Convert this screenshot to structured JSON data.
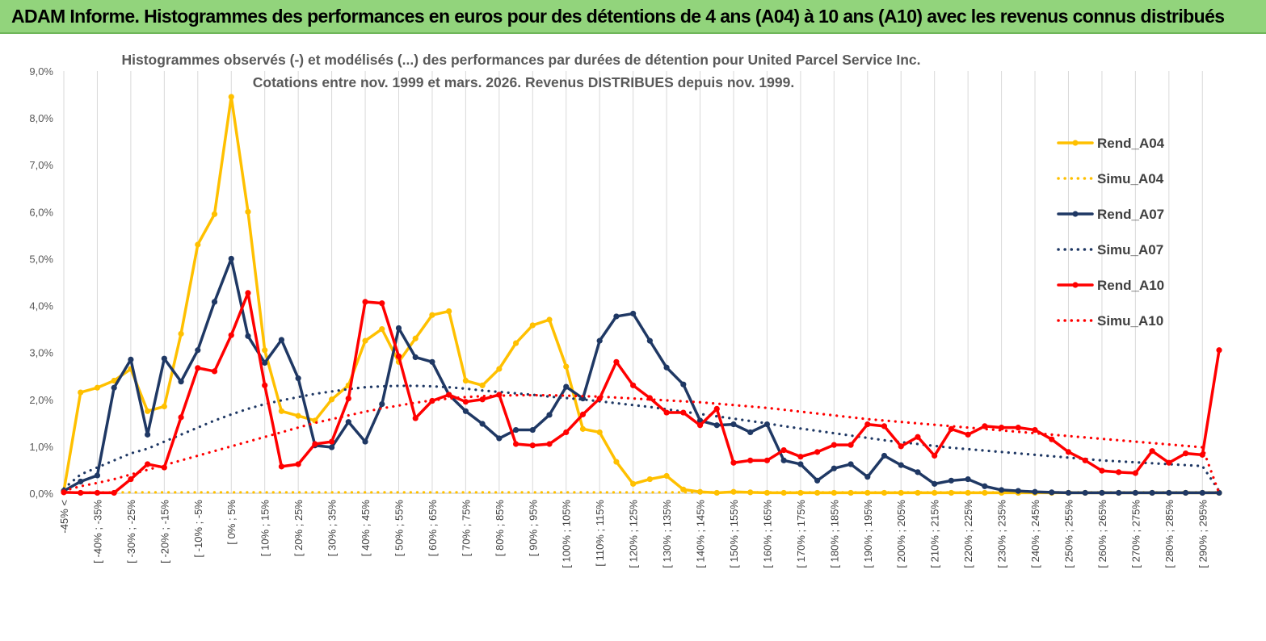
{
  "header": {
    "banner_title": "ADAM Informe. Histogrammes des performances en euros pour des détentions de 4 ans (A04) à 10 ans (A10) avec les revenus connus distribués"
  },
  "chart_data": {
    "type": "line",
    "title": "Histogrammes observés (-) et modélisés (...) des performances par durées de détention pour United Parcel Service Inc.",
    "subtitle": "Cotations entre nov. 1999 et mars. 2026. Revenus DISTRIBUES depuis nov. 1999.",
    "xlabel": "",
    "ylabel": "",
    "ylim": [
      0,
      9
    ],
    "y_ticks": [
      "0,0%",
      "1,0%",
      "2,0%",
      "3,0%",
      "4,0%",
      "5,0%",
      "6,0%",
      "7,0%",
      "8,0%",
      "9,0%"
    ],
    "grid": "vertical",
    "legend_position": "right",
    "x_tick_labels": [
      "-45% <",
      "[ -40% ; -35%",
      "[ -30% ; -25%",
      "[ -20% ; -15%",
      "[ -10% ; -5%",
      "[ 0% ; 5%",
      "[ 10% ; 15%",
      "[ 20% ; 25%",
      "[ 30% ; 35%",
      "[ 40% ; 45%",
      "[ 50% ; 55%",
      "[ 60% ; 65%",
      "[ 70% ; 75%",
      "[ 80% ; 85%",
      "[ 90% ; 95%",
      "[ 100% ; 105%",
      "[ 110% ; 115%",
      "[ 120% ; 125%",
      "[ 130% ; 135%",
      "[ 140% ; 145%",
      "[ 150% ; 155%",
      "[ 160% ; 165%",
      "[ 170% ; 175%",
      "[ 180% ; 185%",
      "[ 190% ; 195%",
      "[ 200% ; 205%",
      "[ 210% ; 215%",
      "[ 220% ; 225%",
      "[ 230% ; 235%",
      "[ 240% ; 245%",
      "[ 250% ; 255%",
      "[ 260% ; 265%",
      "[ 270% ; 275%",
      "[ 280% ; 285%",
      "[ 290% ; 295%"
    ],
    "x_tick_indices": [
      0,
      2,
      4,
      6,
      8,
      10,
      12,
      14,
      16,
      18,
      20,
      22,
      24,
      26,
      28,
      30,
      32,
      34,
      36,
      38,
      40,
      42,
      44,
      46,
      48,
      50,
      52,
      54,
      56,
      58,
      60,
      62,
      64,
      66,
      68
    ],
    "n_points": 70,
    "series": [
      {
        "name": "Rend_A04",
        "style": "solid",
        "color": "#ffc000",
        "values": [
          0.05,
          2.15,
          2.25,
          2.4,
          2.65,
          1.75,
          1.85,
          3.4,
          5.3,
          5.95,
          8.45,
          6.0,
          3.05,
          1.75,
          1.65,
          1.55,
          2.0,
          2.3,
          3.25,
          3.5,
          2.8,
          3.3,
          3.8,
          3.88,
          2.4,
          2.3,
          2.65,
          3.2,
          3.58,
          3.7,
          2.7,
          1.37,
          1.3,
          0.67,
          0.2,
          0.3,
          0.37,
          0.08,
          0.03,
          0.01,
          0.03,
          0.02,
          0.01,
          0.01,
          0.01,
          0.01,
          0.01,
          0.01,
          0.01,
          0.01,
          0.01,
          0.01,
          0.01,
          0.01,
          0.01,
          0.01,
          0.01,
          0.01,
          0.01,
          0.01,
          0.01,
          0.01,
          0.01,
          0.01,
          0.01,
          0.01,
          0.01,
          0.01,
          0.01,
          0.01
        ]
      },
      {
        "name": "Simu_A04",
        "style": "dotted",
        "color": "#ffc000",
        "values": [
          0.02,
          0.02,
          0.02,
          0.02,
          0.02,
          0.02,
          0.02,
          0.02,
          0.02,
          0.02,
          0.02,
          0.02,
          0.02,
          0.02,
          0.02,
          0.02,
          0.02,
          0.02,
          0.02,
          0.02,
          0.02,
          0.02,
          0.02,
          0.02,
          0.02,
          0.02,
          0.02,
          0.02,
          0.02,
          0.02,
          0.02,
          0.02,
          0.02,
          0.02,
          0.02,
          0.02,
          0.02,
          0.02,
          0.02,
          0.02,
          0.02,
          0.02,
          0.02,
          0.02,
          0.02,
          0.02,
          0.02,
          0.02,
          0.02,
          0.02,
          0.02,
          0.02,
          0.02,
          0.02,
          0.02,
          0.02,
          0.02,
          0.02,
          0.02,
          0.02,
          0.02,
          0.02,
          0.02,
          0.02,
          0.02,
          0.02,
          0.02,
          0.02,
          0.02,
          0.02
        ]
      },
      {
        "name": "Rend_A07",
        "style": "solid",
        "color": "#1f3864",
        "values": [
          0.05,
          0.25,
          0.38,
          2.25,
          2.85,
          1.25,
          2.87,
          2.38,
          3.05,
          4.08,
          5.0,
          3.35,
          2.78,
          3.27,
          2.45,
          1.02,
          0.98,
          1.52,
          1.1,
          1.9,
          3.52,
          2.9,
          2.8,
          2.1,
          1.75,
          1.48,
          1.17,
          1.35,
          1.35,
          1.67,
          2.27,
          2.02,
          3.25,
          3.77,
          3.83,
          3.25,
          2.68,
          2.32,
          1.55,
          1.45,
          1.47,
          1.3,
          1.47,
          0.7,
          0.62,
          0.27,
          0.53,
          0.62,
          0.35,
          0.8,
          0.6,
          0.45,
          0.2,
          0.27,
          0.3,
          0.15,
          0.07,
          0.05,
          0.03,
          0.02,
          0.01,
          0.01,
          0.01,
          0.01,
          0.01,
          0.01,
          0.01,
          0.01,
          0.01,
          0.01
        ]
      },
      {
        "name": "Simu_A07",
        "style": "dotted",
        "color": "#1f3864",
        "values": [
          0.1,
          0.4,
          0.55,
          0.7,
          0.85,
          0.95,
          1.1,
          1.25,
          1.4,
          1.55,
          1.68,
          1.8,
          1.9,
          1.98,
          2.05,
          2.12,
          2.17,
          2.22,
          2.26,
          2.28,
          2.29,
          2.29,
          2.28,
          2.26,
          2.23,
          2.19,
          2.16,
          2.13,
          2.1,
          2.06,
          2.03,
          2.0,
          1.96,
          1.92,
          1.88,
          1.84,
          1.79,
          1.74,
          1.69,
          1.64,
          1.59,
          1.54,
          1.49,
          1.43,
          1.38,
          1.33,
          1.28,
          1.23,
          1.18,
          1.13,
          1.09,
          1.05,
          1.01,
          0.97,
          0.94,
          0.91,
          0.88,
          0.85,
          0.82,
          0.79,
          0.76,
          0.73,
          0.7,
          0.68,
          0.66,
          0.64,
          0.62,
          0.6,
          0.58,
          0.05
        ]
      },
      {
        "name": "Rend_A10",
        "style": "solid",
        "color": "#ff0000",
        "values": [
          0.02,
          0.01,
          0.01,
          0.01,
          0.3,
          0.62,
          0.55,
          1.62,
          2.67,
          2.6,
          3.37,
          4.27,
          2.3,
          0.57,
          0.62,
          1.05,
          1.1,
          2.02,
          4.08,
          4.05,
          2.92,
          1.6,
          1.97,
          2.1,
          1.95,
          2.0,
          2.1,
          1.05,
          1.02,
          1.05,
          1.3,
          1.68,
          2.02,
          2.8,
          2.3,
          2.03,
          1.72,
          1.72,
          1.45,
          1.8,
          0.65,
          0.7,
          0.7,
          0.92,
          0.78,
          0.88,
          1.03,
          1.03,
          1.47,
          1.43,
          1.0,
          1.2,
          0.8,
          1.37,
          1.25,
          1.43,
          1.4,
          1.4,
          1.35,
          1.15,
          0.88,
          0.7,
          0.48,
          0.45,
          0.43,
          0.9,
          0.65,
          0.85,
          0.82,
          3.05
        ]
      },
      {
        "name": "Simu_A10",
        "style": "dotted",
        "color": "#ff0000",
        "values": [
          0.05,
          0.15,
          0.22,
          0.3,
          0.4,
          0.5,
          0.6,
          0.7,
          0.8,
          0.9,
          1.0,
          1.1,
          1.2,
          1.3,
          1.4,
          1.5,
          1.58,
          1.66,
          1.74,
          1.81,
          1.87,
          1.93,
          1.98,
          2.02,
          2.05,
          2.07,
          2.08,
          2.09,
          2.09,
          2.09,
          2.08,
          2.07,
          2.06,
          2.04,
          2.02,
          2.0,
          1.98,
          1.96,
          1.94,
          1.91,
          1.88,
          1.85,
          1.82,
          1.78,
          1.74,
          1.7,
          1.66,
          1.62,
          1.58,
          1.55,
          1.52,
          1.49,
          1.46,
          1.43,
          1.4,
          1.37,
          1.34,
          1.31,
          1.28,
          1.25,
          1.22,
          1.19,
          1.16,
          1.13,
          1.1,
          1.07,
          1.04,
          1.01,
          0.98,
          0.0
        ]
      }
    ]
  }
}
